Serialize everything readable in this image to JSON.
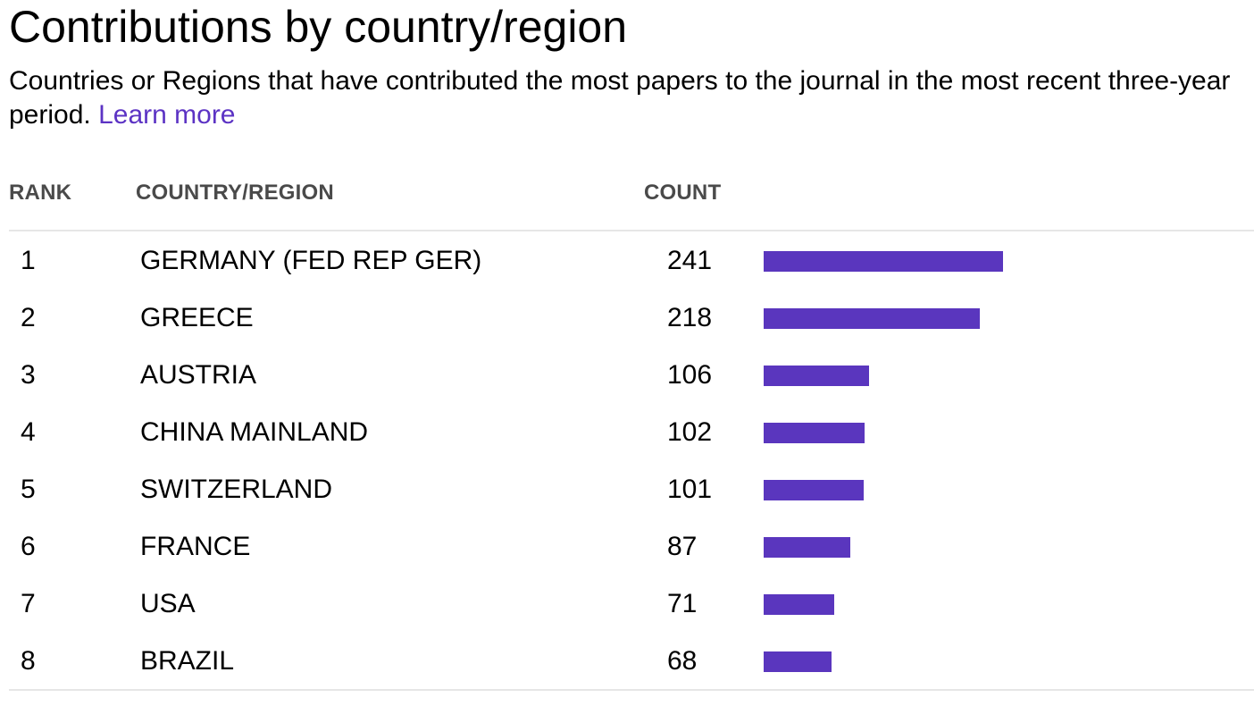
{
  "header": {
    "title": "Contributions by country/region",
    "description": "Countries or Regions that have contributed the most papers to the journal in the most recent three-year period.",
    "learn_more": "Learn more"
  },
  "table": {
    "columns": {
      "rank": "RANK",
      "country": "COUNTRY/REGION",
      "count": "COUNT"
    }
  },
  "colors": {
    "bar": "#5a36be",
    "link": "#5c33c4"
  },
  "chart_data": {
    "type": "bar",
    "orientation": "horizontal",
    "ranks": [
      "1",
      "2",
      "3",
      "4",
      "5",
      "6",
      "7",
      "8"
    ],
    "categories": [
      "GERMANY (FED REP GER)",
      "GREECE",
      "AUSTRIA",
      "CHINA MAINLAND",
      "SWITZERLAND",
      "FRANCE",
      "USA",
      "BRAZIL"
    ],
    "values": [
      241,
      218,
      106,
      102,
      101,
      87,
      71,
      68
    ],
    "title": "Contributions by country/region",
    "xlabel": "",
    "ylabel": "",
    "grid": false,
    "legend": "none"
  }
}
